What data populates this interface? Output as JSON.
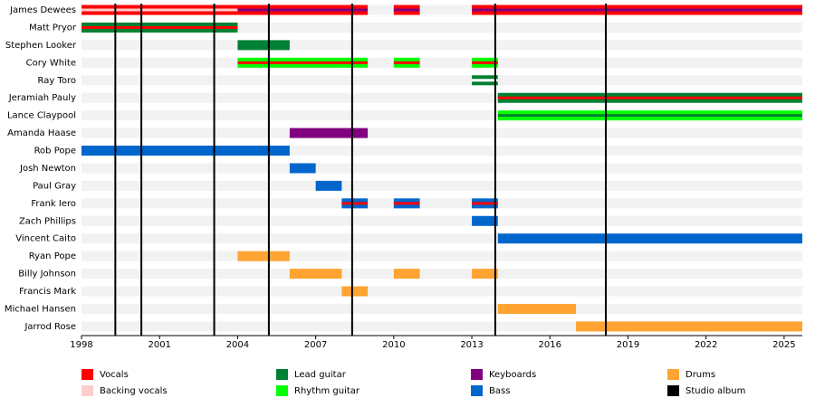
{
  "chart_data": {
    "type": "timeline",
    "xlim": [
      1998,
      2025.7
    ],
    "xticks": [
      1998,
      2001,
      2004,
      2007,
      2010,
      2013,
      2016,
      2019,
      2022,
      2025
    ],
    "album_color": "#000000",
    "albums": [
      1999.3,
      2000.3,
      2003.1,
      2005.2,
      2008.4,
      2013.9,
      2018.15
    ],
    "members": [
      {
        "name": "James Dewees",
        "spans": [
          {
            "start": 1998,
            "end": 2004,
            "color": "#ff0000",
            "stripe": "#ffcccc"
          },
          {
            "start": 2004,
            "end": 2009,
            "color": "#ff0000",
            "stripe": "#800080"
          },
          {
            "start": 2010,
            "end": 2011,
            "color": "#ff0000",
            "stripe": "#800080"
          },
          {
            "start": 2013,
            "end": 2025.7,
            "color": "#ff0000",
            "stripe": "#800080"
          }
        ]
      },
      {
        "name": "Matt Pryor",
        "spans": [
          {
            "start": 1998,
            "end": 2004,
            "color": "#008033",
            "stripe": "#ff0000"
          }
        ]
      },
      {
        "name": "Stephen Looker",
        "spans": [
          {
            "start": 2004,
            "end": 2006,
            "color": "#008033"
          }
        ]
      },
      {
        "name": "Cory White",
        "spans": [
          {
            "start": 2004,
            "end": 2009,
            "color": "#00ff00",
            "stripe": "#ff0000"
          },
          {
            "start": 2010,
            "end": 2011,
            "color": "#00ff00",
            "stripe": "#ff0000"
          },
          {
            "start": 2013,
            "end": 2014,
            "color": "#00ff00",
            "stripe": "#ff0000"
          }
        ]
      },
      {
        "name": "Ray Toro",
        "spans": [
          {
            "start": 2013,
            "end": 2014,
            "color": "#008033",
            "stripe": "#ffffff"
          }
        ]
      },
      {
        "name": "Jeramiah Pauly",
        "spans": [
          {
            "start": 2014,
            "end": 2025.7,
            "color": "#008033",
            "stripe": "#ff0000"
          }
        ]
      },
      {
        "name": "Lance Claypool",
        "spans": [
          {
            "start": 2014,
            "end": 2025.7,
            "color": "#00ff00",
            "stripe": "#008033"
          }
        ]
      },
      {
        "name": "Amanda Haase",
        "spans": [
          {
            "start": 2006,
            "end": 2009,
            "color": "#800080"
          }
        ]
      },
      {
        "name": "Rob Pope",
        "spans": [
          {
            "start": 1998,
            "end": 2006,
            "color": "#0066cc"
          }
        ]
      },
      {
        "name": "Josh Newton",
        "spans": [
          {
            "start": 2006,
            "end": 2007,
            "color": "#0066cc"
          }
        ]
      },
      {
        "name": "Paul Gray",
        "spans": [
          {
            "start": 2007,
            "end": 2008,
            "color": "#0066cc"
          }
        ]
      },
      {
        "name": "Frank Iero",
        "spans": [
          {
            "start": 2008,
            "end": 2009,
            "color": "#0066cc",
            "stripe": "#ff0000"
          },
          {
            "start": 2010,
            "end": 2011,
            "color": "#0066cc",
            "stripe": "#ff0000"
          },
          {
            "start": 2013,
            "end": 2014,
            "color": "#0066cc",
            "stripe": "#ff0000"
          }
        ]
      },
      {
        "name": "Zach Phillips",
        "spans": [
          {
            "start": 2013,
            "end": 2014,
            "color": "#0066cc"
          }
        ]
      },
      {
        "name": "Vincent Caito",
        "spans": [
          {
            "start": 2014,
            "end": 2025.7,
            "color": "#0066cc"
          }
        ]
      },
      {
        "name": "Ryan Pope",
        "spans": [
          {
            "start": 2004,
            "end": 2006,
            "color": "#ffa333"
          }
        ]
      },
      {
        "name": "Billy Johnson",
        "spans": [
          {
            "start": 2006,
            "end": 2008,
            "color": "#ffa333"
          },
          {
            "start": 2010,
            "end": 2011,
            "color": "#ffa333"
          },
          {
            "start": 2013,
            "end": 2014,
            "color": "#ffa333"
          }
        ]
      },
      {
        "name": "Francis Mark",
        "spans": [
          {
            "start": 2008,
            "end": 2009,
            "color": "#ffa333"
          }
        ]
      },
      {
        "name": "Michael Hansen",
        "spans": [
          {
            "start": 2014,
            "end": 2017,
            "color": "#ffa333"
          }
        ]
      },
      {
        "name": "Jarrod Rose",
        "spans": [
          {
            "start": 2017,
            "end": 2025.7,
            "color": "#ffa333"
          }
        ]
      }
    ],
    "legend": [
      {
        "name": "Vocals",
        "color": "#ff0000"
      },
      {
        "name": "Backing vocals",
        "color": "#ffcccc"
      },
      {
        "name": "Lead guitar",
        "color": "#008033"
      },
      {
        "name": "Rhythm guitar",
        "color": "#00ff00"
      },
      {
        "name": "Keyboards",
        "color": "#800080"
      },
      {
        "name": "Bass",
        "color": "#0066cc"
      },
      {
        "name": "Drums",
        "color": "#ffa333"
      },
      {
        "name": "Studio album",
        "color": "#000000"
      }
    ]
  }
}
